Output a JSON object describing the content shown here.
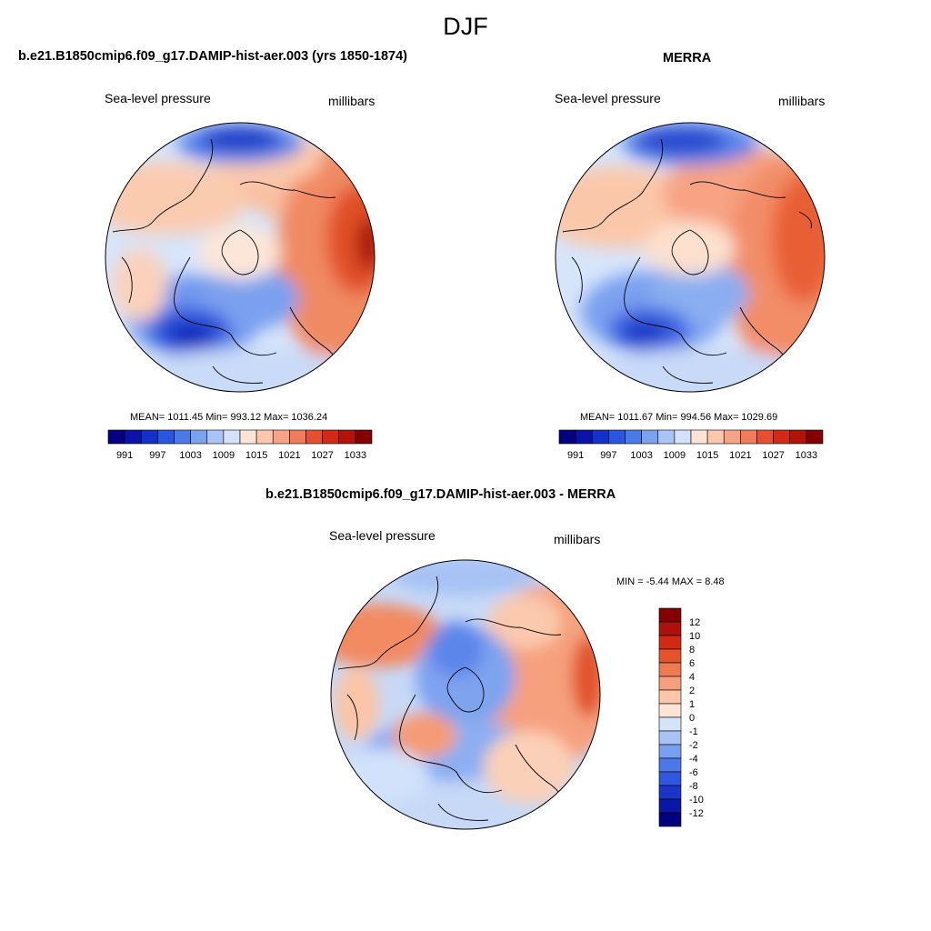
{
  "title": "DJF",
  "colors": {
    "abs": [
      "#04007f",
      "#0a14a8",
      "#1530c8",
      "#2a55e0",
      "#4a7ae8",
      "#7ba1ef",
      "#aac4f5",
      "#d2e2fa",
      "#fde3d3",
      "#fbc8ae",
      "#f7a384",
      "#f07c5c",
      "#e6502e",
      "#d32a13",
      "#b31208",
      "#840000"
    ],
    "diff": [
      "#02007e",
      "#0a16a6",
      "#1a34c8",
      "#2d58df",
      "#4b78e8",
      "#7a9fee",
      "#a9c3f4",
      "#d4e4fa",
      "#fde4d4",
      "#fbc6a9",
      "#f59f7c",
      "#ee7a54",
      "#e4532a",
      "#cf2b12",
      "#ad110a",
      "#820000"
    ]
  },
  "panels": {
    "model": {
      "title": "b.e21.B1850cmip6.f09_g17.DAMIP-hist-aer.003 (yrs 1850-1874)",
      "variable": "Sea-level pressure",
      "units": "millibars",
      "stats": "MEAN= 1011.45  Min= 993.12  Max= 1036.24",
      "colorbar_ticks": [
        "991",
        "997",
        "1003",
        "1009",
        "1015",
        "1021",
        "1027",
        "1033"
      ]
    },
    "obs": {
      "title": "MERRA",
      "variable": "Sea-level pressure",
      "units": "millibars",
      "stats": "MEAN= 1011.67  Min= 994.56  Max= 1029.69",
      "colorbar_ticks": [
        "991",
        "997",
        "1003",
        "1009",
        "1015",
        "1021",
        "1027",
        "1033"
      ]
    },
    "diff": {
      "title": "b.e21.B1850cmip6.f09_g17.DAMIP-hist-aer.003 - MERRA",
      "variable": "Sea-level pressure",
      "units": "millibars",
      "stats": "MIN =  -5.44 MAX =   8.48",
      "colorbar_ticks": [
        "12",
        "10",
        "8",
        "6",
        "4",
        "2",
        "1",
        "0",
        "-1",
        "-2",
        "-4",
        "-6",
        "-8",
        "-10",
        "-12"
      ]
    }
  }
}
